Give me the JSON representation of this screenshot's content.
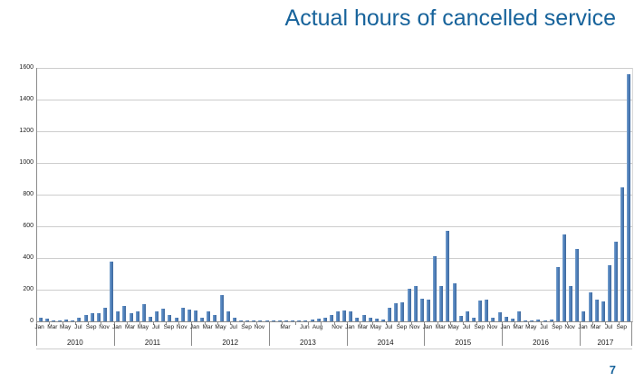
{
  "title": "Actual hours of cancelled service",
  "page_number": "7",
  "colors": {
    "title_text": "#17639b",
    "bar_fill": "#4f81bd",
    "gridline": "#cdcdcd",
    "axis_line": "#8c8c8c",
    "tick_text": "#1a1a1a"
  },
  "chart_data": {
    "type": "bar",
    "title": "Actual hours of cancelled service",
    "xlabel": "",
    "ylabel": "",
    "ylim": [
      0,
      1600
    ],
    "ytick_interval": 200,
    "yticks": [
      0,
      200,
      400,
      600,
      800,
      1000,
      1200,
      1400,
      1600
    ],
    "grid": true,
    "legend": "none",
    "groups": [
      {
        "year": "2010",
        "values": [
          20,
          15,
          5,
          3,
          10,
          2,
          20,
          40,
          50,
          50,
          85,
          375
        ],
        "ticks": [
          [
            0,
            "Jan"
          ],
          [
            2,
            "Mar"
          ],
          [
            4,
            "May"
          ],
          [
            6,
            "Jul"
          ],
          [
            8,
            "Sep"
          ],
          [
            10,
            "Nov"
          ]
        ]
      },
      {
        "year": "2011",
        "values": [
          65,
          95,
          50,
          65,
          110,
          30,
          65,
          80,
          40,
          20,
          85,
          75
        ],
        "ticks": [
          [
            0,
            "Jan"
          ],
          [
            2,
            "Mar"
          ],
          [
            4,
            "May"
          ],
          [
            6,
            "Jul"
          ],
          [
            8,
            "Sep"
          ],
          [
            10,
            "Nov"
          ]
        ]
      },
      {
        "year": "2012",
        "values": [
          70,
          20,
          65,
          40,
          165,
          65,
          25,
          8,
          5,
          8,
          5,
          8
        ],
        "ticks": [
          [
            0,
            "Jan"
          ],
          [
            2,
            "Mar"
          ],
          [
            4,
            "May"
          ],
          [
            6,
            "Jul"
          ],
          [
            8,
            "Sep"
          ],
          [
            10,
            "Nov"
          ]
        ]
      },
      {
        "year": "2013",
        "values": [
          3,
          5,
          8,
          3,
          5,
          8,
          10,
          15,
          25,
          40,
          60,
          70
        ],
        "ticks": [
          [
            2,
            "Mar"
          ],
          [
            5,
            "Jun"
          ],
          [
            7,
            "Aug"
          ],
          [
            10,
            "Nov"
          ]
        ]
      },
      {
        "year": "2014",
        "values": [
          65,
          25,
          40,
          20,
          15,
          10,
          85,
          115,
          120,
          205,
          220,
          145
        ],
        "ticks": [
          [
            0,
            "Jan"
          ],
          [
            2,
            "Mar"
          ],
          [
            4,
            "May"
          ],
          [
            6,
            "Jul"
          ],
          [
            8,
            "Sep"
          ],
          [
            10,
            "Nov"
          ]
        ]
      },
      {
        "year": "2015",
        "values": [
          135,
          410,
          220,
          570,
          240,
          35,
          65,
          20,
          130,
          135,
          20,
          55
        ],
        "ticks": [
          [
            0,
            "Jan"
          ],
          [
            2,
            "Mar"
          ],
          [
            4,
            "May"
          ],
          [
            6,
            "Jul"
          ],
          [
            8,
            "Sep"
          ],
          [
            10,
            "Nov"
          ]
        ]
      },
      {
        "year": "2016",
        "values": [
          30,
          15,
          60,
          5,
          8,
          10,
          8,
          12,
          340,
          550,
          225,
          455
        ],
        "ticks": [
          [
            0,
            "Jan"
          ],
          [
            2,
            "Mar"
          ],
          [
            4,
            "May"
          ],
          [
            6,
            "Jul"
          ],
          [
            8,
            "Sep"
          ],
          [
            10,
            "Nov"
          ]
        ]
      },
      {
        "year": "2017",
        "values": [
          65,
          185,
          135,
          125,
          355,
          505,
          845,
          1560
        ],
        "ticks": [
          [
            0,
            "Jan"
          ],
          [
            2,
            "Mar"
          ],
          [
            4,
            "Jul"
          ],
          [
            6,
            "Sep"
          ]
        ]
      }
    ]
  }
}
